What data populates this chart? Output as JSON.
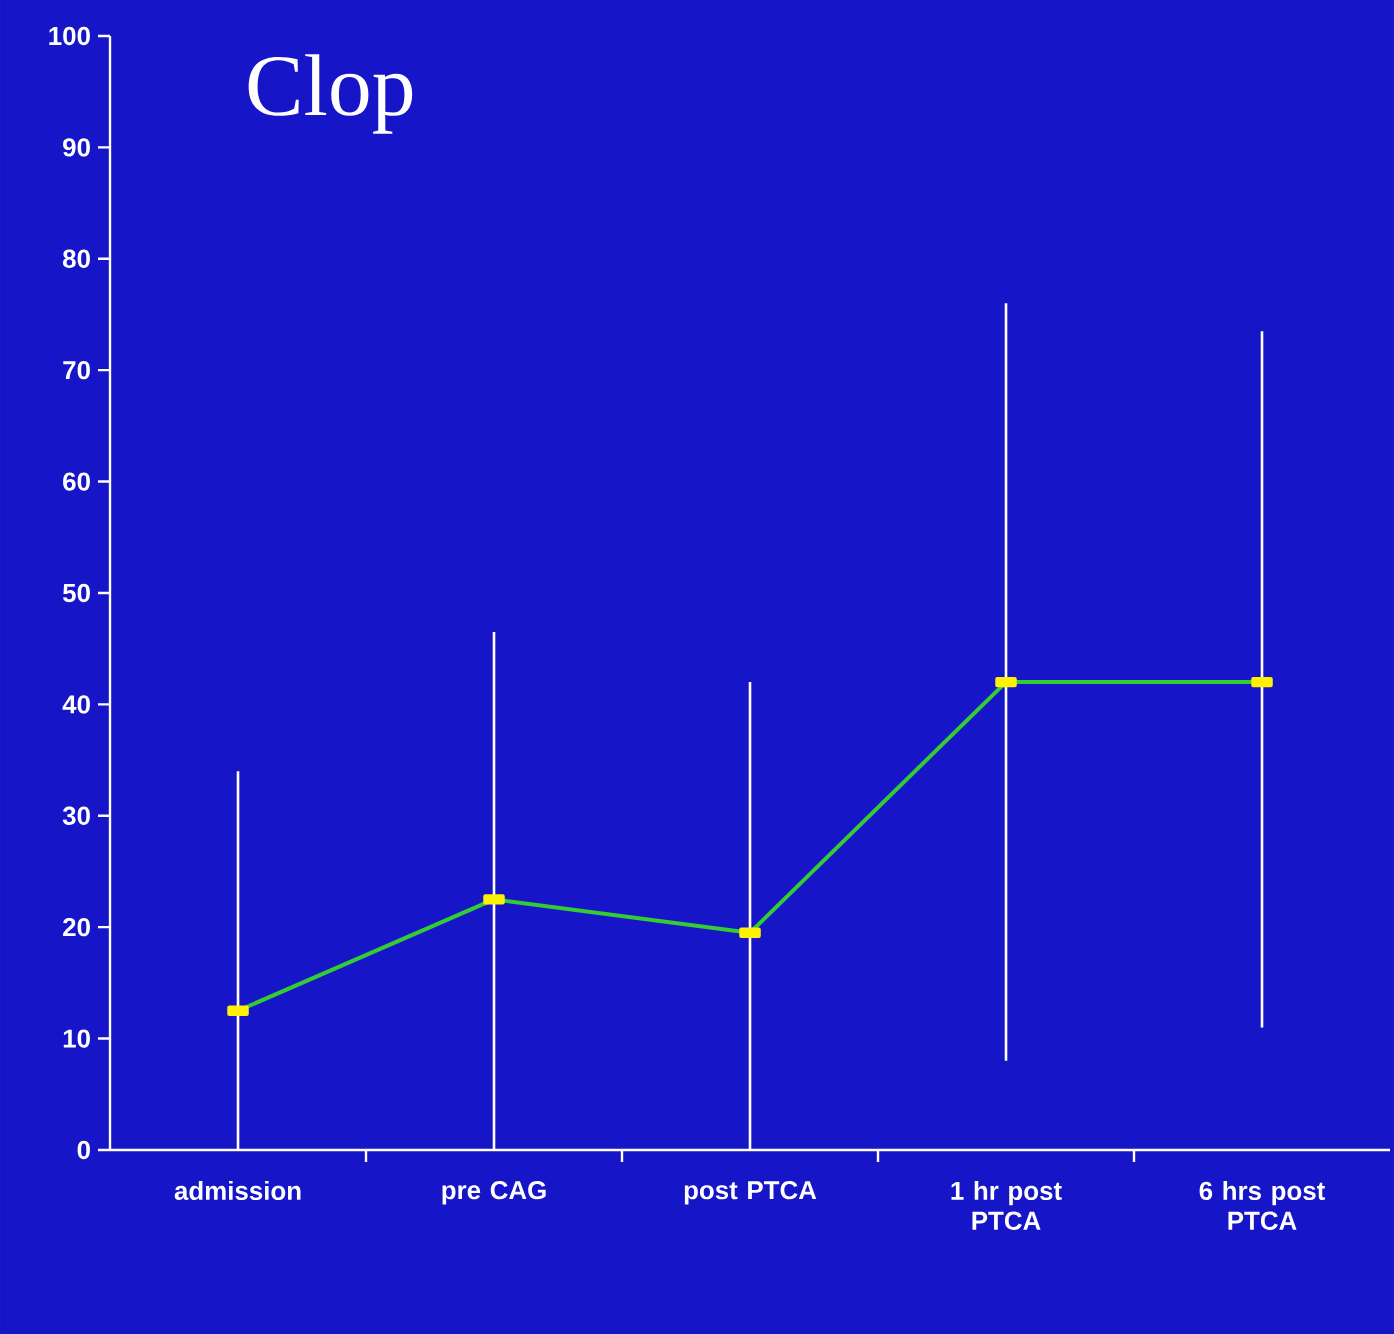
{
  "chart_data": {
    "type": "line",
    "title": "Clop",
    "categories": [
      "admission",
      "pre CAG",
      "post PTCA",
      "1 hr post PTCA",
      "6 hrs post PTCA"
    ],
    "series": [
      {
        "color": "#33cc33",
        "values": [
          12.5,
          22.5,
          19.5,
          42,
          42
        ],
        "errors": [
          [
            0,
            34
          ],
          [
            0,
            46.5
          ],
          [
            0,
            42
          ],
          [
            8,
            76
          ],
          [
            11,
            73.5
          ]
        ]
      }
    ],
    "ylim": [
      0,
      100
    ],
    "yticks": [
      0,
      10,
      20,
      30,
      40,
      50,
      60,
      70,
      80,
      90,
      100
    ],
    "marker": "square",
    "grid": false
  }
}
